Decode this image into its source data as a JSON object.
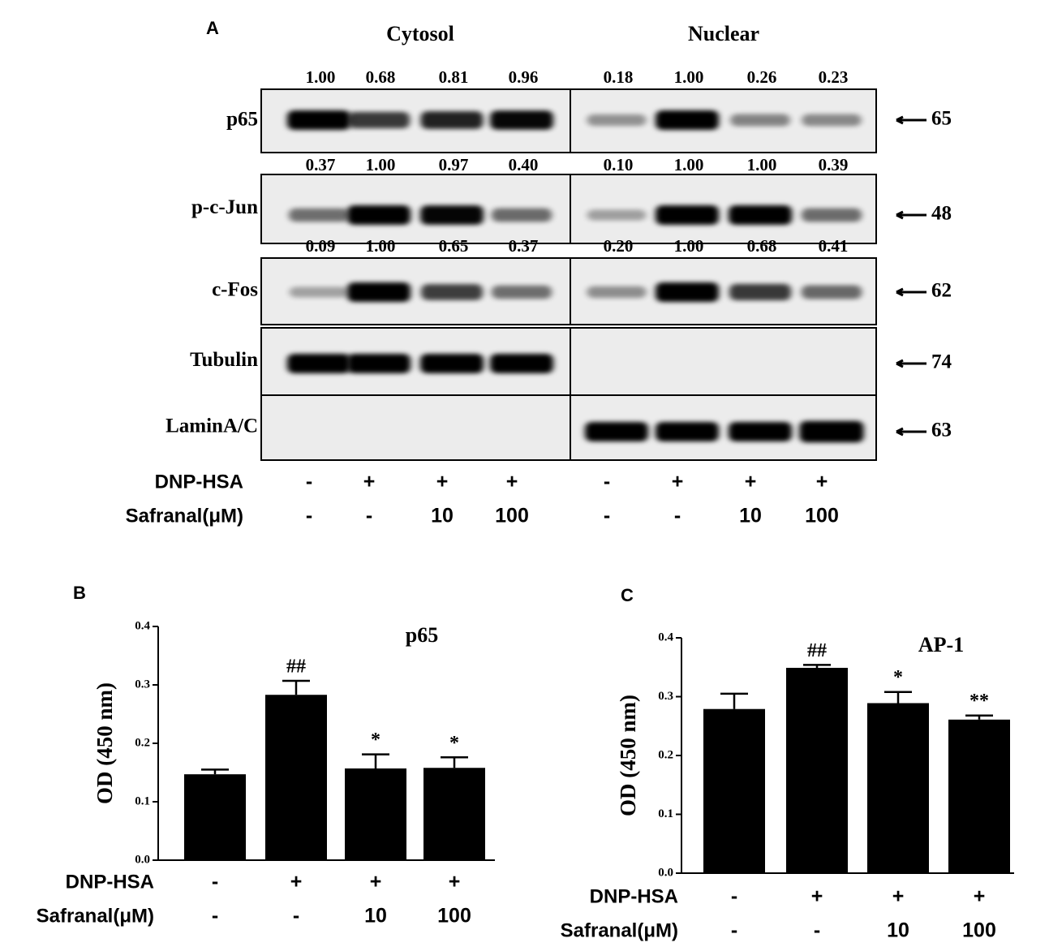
{
  "panel_a": {
    "letter": "A",
    "headers": [
      "Cytosol",
      "Nuclear"
    ],
    "rows": [
      {
        "label": "p65",
        "mw": "65",
        "values": [
          "1.00",
          "0.68",
          "0.81",
          "0.96",
          "0.18",
          "1.00",
          "0.26",
          "0.23"
        ]
      },
      {
        "label": "p-c-Jun",
        "mw": "48",
        "values": [
          "0.37",
          "1.00",
          "0.97",
          "0.40",
          "0.10",
          "1.00",
          "1.00",
          "0.39"
        ]
      },
      {
        "label": "c-Fos",
        "mw": "62",
        "values": [
          "0.09",
          "1.00",
          "0.65",
          "0.37",
          "0.20",
          "1.00",
          "0.68",
          "0.41"
        ]
      },
      {
        "label": "Tubulin",
        "mw": "74"
      },
      {
        "label": "LaminA/C",
        "mw": "63"
      }
    ],
    "treatments": [
      {
        "label": "DNP-HSA",
        "values": [
          "-",
          "+",
          "+",
          "+",
          "-",
          "+",
          "+",
          "+"
        ]
      },
      {
        "label": "Safranal(μM)",
        "values": [
          "-",
          "-",
          "10",
          "100",
          "-",
          "-",
          "10",
          "100"
        ]
      }
    ]
  },
  "chart_data": [
    {
      "type": "bar",
      "letter": "B",
      "title": "p65",
      "y_label": "OD (450 nm)",
      "color": "#000000",
      "values": [
        0.147,
        0.283,
        0.157,
        0.158
      ],
      "errors": [
        0.008,
        0.024,
        0.024,
        0.018
      ],
      "annotations": [
        null,
        "##",
        "*",
        "*"
      ],
      "ylim": [
        0,
        0.4
      ],
      "yticks": [
        {
          "value": 0,
          "label": "0.0"
        },
        0.1,
        0.2,
        0.3,
        0.4
      ],
      "treatments": [
        {
          "label": "DNP-HSA",
          "values": [
            "-",
            "+",
            "+",
            "+"
          ]
        },
        {
          "label": "Safranal(μM)",
          "values": [
            "-",
            "-",
            "10",
            "100"
          ]
        }
      ]
    },
    {
      "type": "bar",
      "letter": "C",
      "title": "AP-1",
      "y_label": "OD (450 nm)",
      "color": "#000000",
      "values": [
        0.279,
        0.349,
        0.289,
        0.261
      ],
      "errors": [
        0.026,
        0.005,
        0.019,
        0.007
      ],
      "annotations": [
        null,
        "##",
        "*",
        "**"
      ],
      "ylim": [
        0,
        0.4
      ],
      "yticks": [
        {
          "value": 0,
          "label": "0.0"
        },
        0.1,
        0.2,
        0.3,
        0.4
      ],
      "treatments": [
        {
          "label": "DNP-HSA",
          "values": [
            "-",
            "+",
            "+",
            "+"
          ]
        },
        {
          "label": "Safranal(μM)",
          "values": [
            "-",
            "-",
            "10",
            "100"
          ]
        }
      ]
    }
  ]
}
